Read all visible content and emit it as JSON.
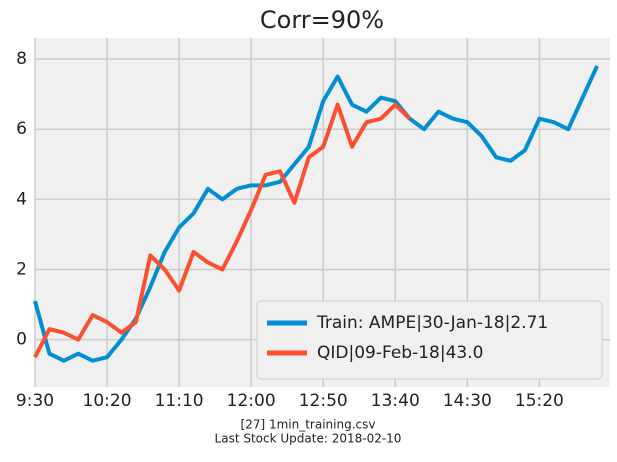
{
  "chart_data": {
    "type": "line",
    "title": "Corr=90%",
    "x": [
      "9:30",
      "9:40",
      "9:50",
      "10:00",
      "10:10",
      "10:20",
      "10:30",
      "10:40",
      "10:50",
      "11:00",
      "11:10",
      "11:20",
      "11:30",
      "11:40",
      "11:50",
      "12:00",
      "12:10",
      "12:20",
      "12:30",
      "12:40",
      "12:50",
      "13:00",
      "13:10",
      "13:20",
      "13:30",
      "13:40",
      "13:50",
      "14:00",
      "14:10",
      "14:20",
      "14:30",
      "14:40",
      "14:50",
      "15:00",
      "15:10",
      "15:20",
      "15:30",
      "15:40",
      "15:50",
      "16:00"
    ],
    "series": [
      {
        "name": "Train: AMPE|30-Jan-18|2.71",
        "color": "#008fd5",
        "values": [
          1.1,
          -0.4,
          -0.6,
          -0.4,
          -0.6,
          -0.5,
          0.0,
          0.6,
          1.5,
          2.5,
          3.2,
          3.6,
          4.3,
          4.0,
          4.3,
          4.4,
          4.4,
          4.5,
          5.0,
          5.5,
          6.8,
          7.5,
          6.7,
          6.5,
          6.9,
          6.8,
          6.3,
          6.0,
          6.5,
          6.3,
          6.2,
          5.8,
          5.2,
          5.1,
          5.4,
          6.3,
          6.2,
          6.0,
          6.9,
          7.8
        ]
      },
      {
        "name": "QID|09-Feb-18|43.0",
        "color": "#fc4f30",
        "values": [
          -0.5,
          0.3,
          0.2,
          0.0,
          0.7,
          0.5,
          0.2,
          0.5,
          2.4,
          2.0,
          1.4,
          2.5,
          2.2,
          2.0,
          2.8,
          3.7,
          4.7,
          4.8,
          3.9,
          5.2,
          5.5,
          6.7,
          5.5,
          6.2,
          6.3,
          6.7,
          6.3,
          null,
          null,
          null,
          null,
          null,
          null,
          null,
          null,
          null,
          null,
          null,
          null,
          null
        ]
      }
    ],
    "xlim": [
      "9:30",
      "16:09"
    ],
    "xticks": [
      "9:30",
      "10:20",
      "11:10",
      "12:00",
      "12:50",
      "13:40",
      "14:30",
      "15:20"
    ],
    "ylim": [
      -1.35,
      8.6
    ],
    "yticks": [
      0,
      2,
      4,
      6,
      8
    ],
    "grid": true,
    "legend": "lower right",
    "footer": [
      "[27] 1min_training.csv",
      "Last Stock Update: 2018-02-10"
    ]
  }
}
